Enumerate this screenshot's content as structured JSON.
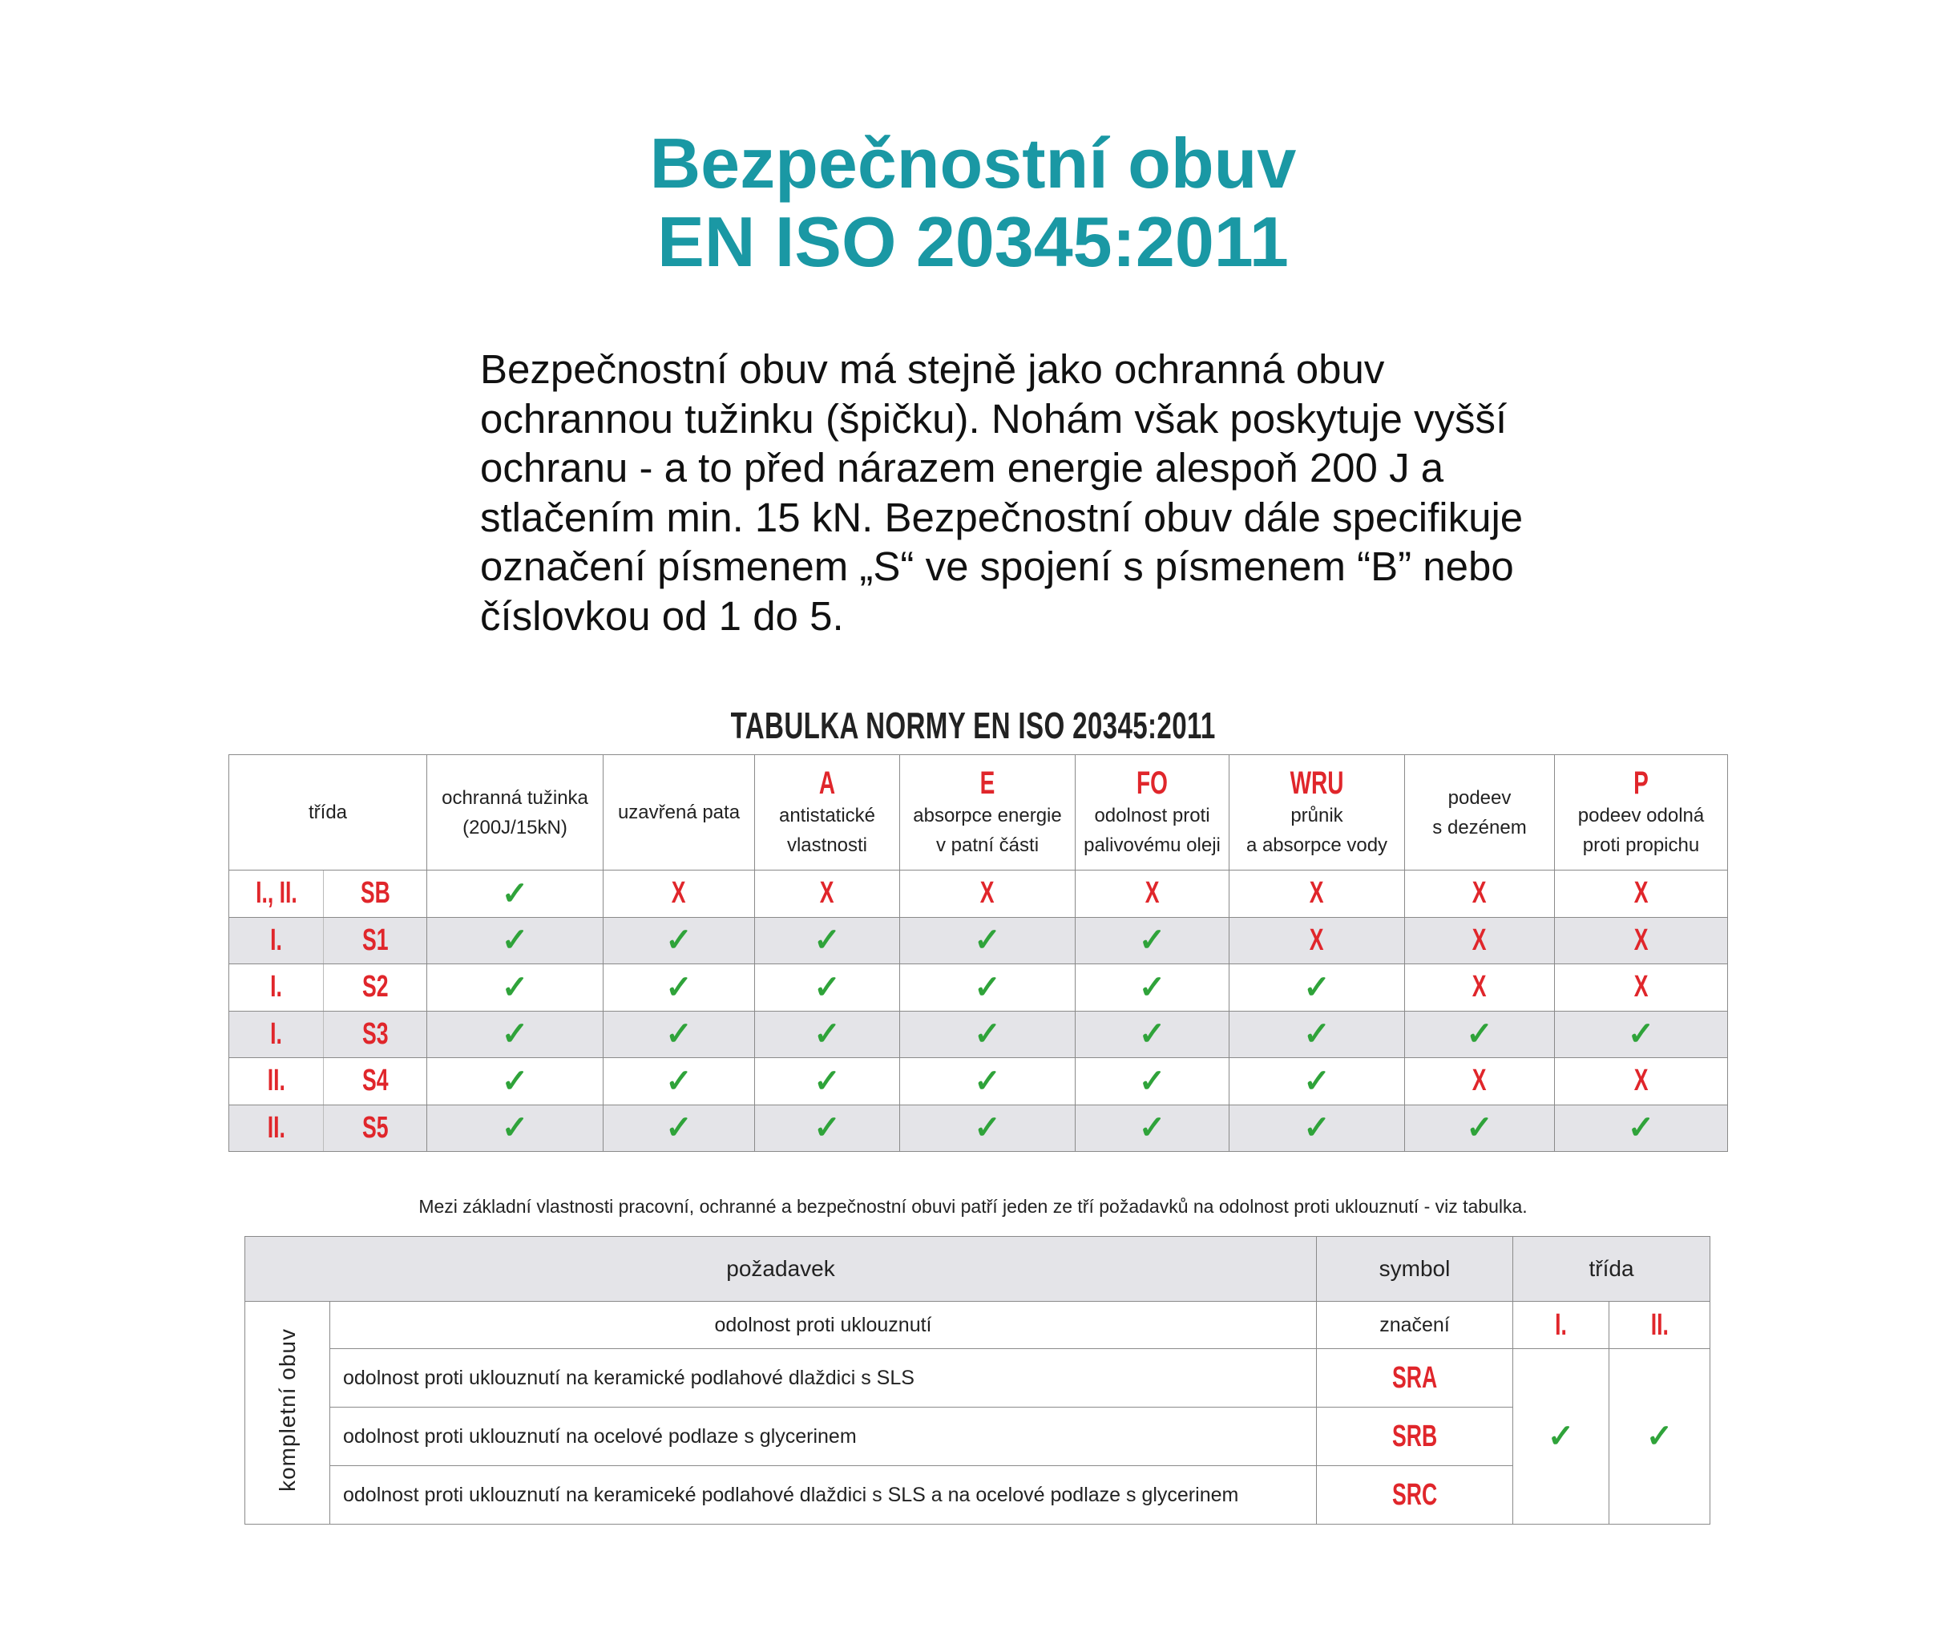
{
  "header": {
    "title_line1": "Bezpečnostní obuv",
    "title_line2": "EN ISO 20345:2011"
  },
  "intro": "Bezpečnostní obuv má stejně jako ochranná obuv ochrannou tužinku (špičku). Nohám však poskytuje vyšší ochranu - a to před nárazem energie alespoň 200 J a stlačením min. 15 kN. Bezpečnostní obuv dále specifikuje označení písmenem „S“ ve spojení s písmenem “B” nebo číslovkou od 1 do 5.",
  "table1": {
    "title": "TABULKA NORMY EN ISO 20345:2011",
    "class_header": "třída",
    "columns": [
      {
        "code": "",
        "line1": "ochranná tužinka",
        "line2": "(200J/15kN)"
      },
      {
        "code": "",
        "line1": "uzavřená pata",
        "line2": ""
      },
      {
        "code": "A",
        "line1": "antistatické",
        "line2": "vlastnosti"
      },
      {
        "code": "E",
        "line1": "absorpce energie",
        "line2": "v patní části"
      },
      {
        "code": "FO",
        "line1": "odolnost proti",
        "line2": "palivovému oleji"
      },
      {
        "code": "WRU",
        "line1": "průnik",
        "line2": "a absorpce vody"
      },
      {
        "code": "",
        "line1": "podeev",
        "line2": "s dezénem"
      },
      {
        "code": "P",
        "line1": "podeev odolná",
        "line2": "proti propichu"
      }
    ],
    "rows": [
      {
        "class": "I., II.",
        "symbol": "SB",
        "values": [
          "✓",
          "X",
          "X",
          "X",
          "X",
          "X",
          "X",
          "X"
        ]
      },
      {
        "class": "I.",
        "symbol": "S1",
        "values": [
          "✓",
          "✓",
          "✓",
          "✓",
          "✓",
          "X",
          "X",
          "X"
        ]
      },
      {
        "class": "I.",
        "symbol": "S2",
        "values": [
          "✓",
          "✓",
          "✓",
          "✓",
          "✓",
          "✓",
          "X",
          "X"
        ]
      },
      {
        "class": "I.",
        "symbol": "S3",
        "values": [
          "✓",
          "✓",
          "✓",
          "✓",
          "✓",
          "✓",
          "✓",
          "✓"
        ]
      },
      {
        "class": "II.",
        "symbol": "S4",
        "values": [
          "✓",
          "✓",
          "✓",
          "✓",
          "✓",
          "✓",
          "X",
          "X"
        ]
      },
      {
        "class": "II.",
        "symbol": "S5",
        "values": [
          "✓",
          "✓",
          "✓",
          "✓",
          "✓",
          "✓",
          "✓",
          "✓"
        ]
      }
    ]
  },
  "note": "Mezi základní vlastnosti pracovní, ochranné a bezpečnostní obuvi patří jeden ze tří požadavků na odolnost proti uklouznutí - viz tabulka.",
  "table2": {
    "h_requirement": "požadavek",
    "h_symbol": "symbol",
    "h_class": "třída",
    "side_label": "kompletní obuv",
    "sub_requirement": "odolnost proti uklouznutí",
    "sub_symbol": "značení",
    "class1": "I.",
    "class2": "II.",
    "rows": [
      {
        "text": "odolnost proti uklouznutí na keramické podlahové dlaždici s SLS",
        "symbol": "SRA"
      },
      {
        "text": "odolnost proti uklouznutí na ocelové podlaze s glycerinem",
        "symbol": "SRB"
      },
      {
        "text": "odolnost proti uklouznutí na keramiceké podlahové dlaždici s SLS a na ocelové podlaze s glycerinem",
        "symbol": "SRC"
      }
    ],
    "class1_value": "✓",
    "class2_value": "✓"
  }
}
